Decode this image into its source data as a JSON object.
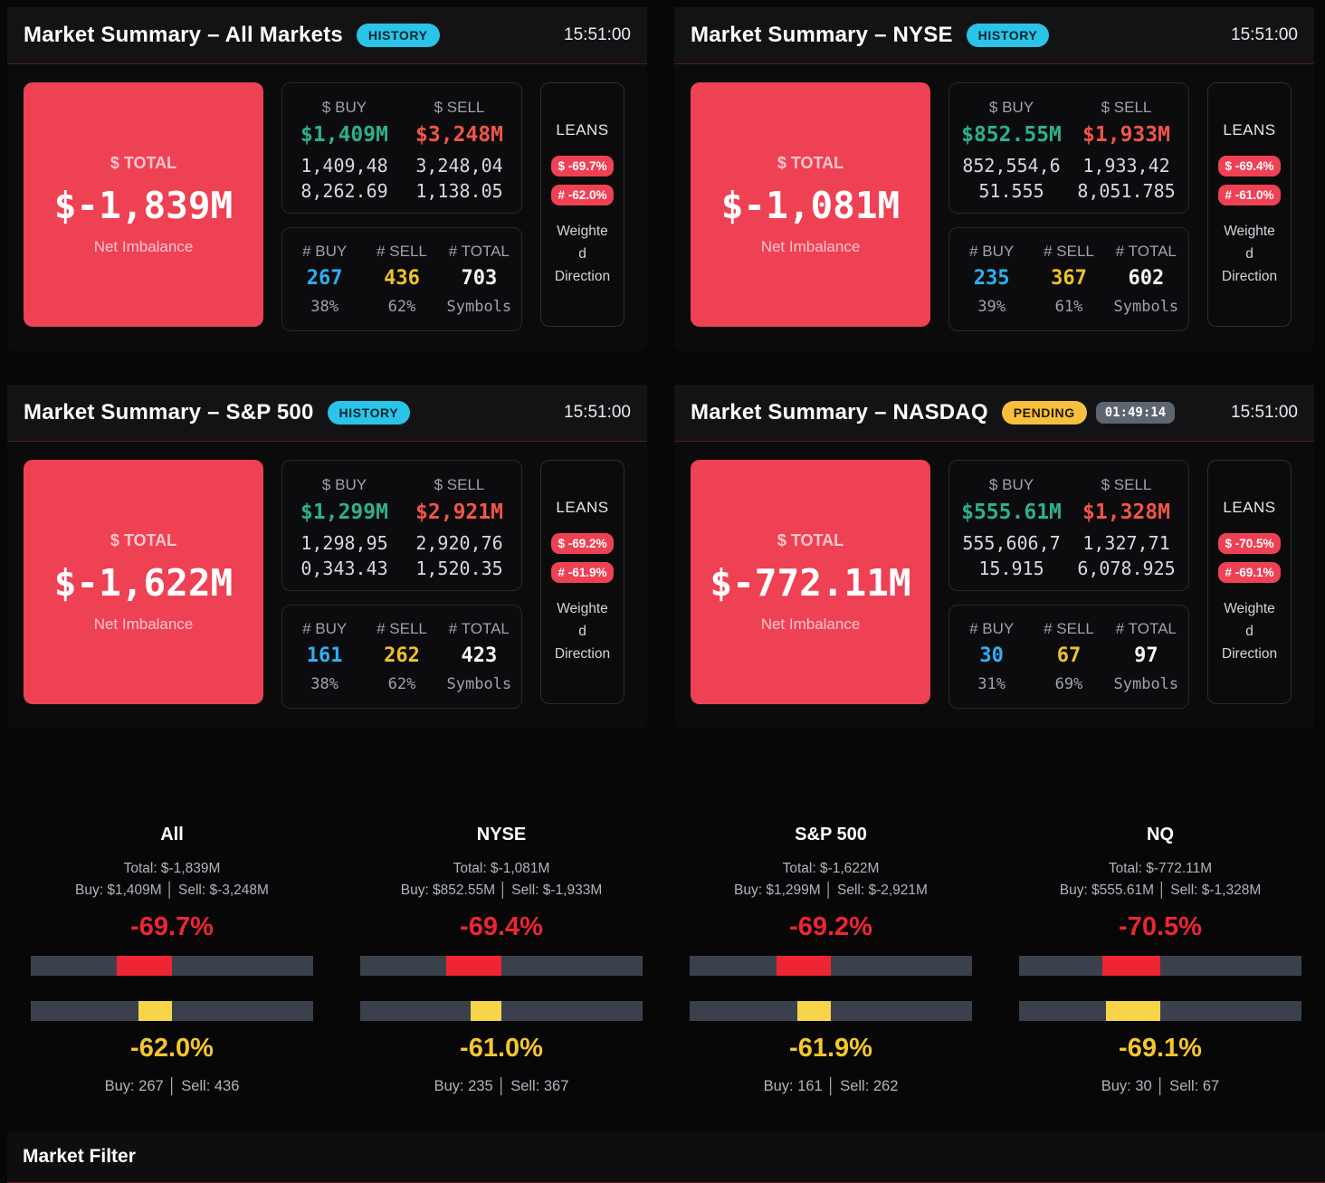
{
  "colors": {
    "imbalance_red": "#ee4154",
    "buy_green": "#2bb18d",
    "sell_red": "#f25449",
    "count_blue": "#2eb0f3",
    "count_yellow": "#eec22d",
    "history_badge_cyan": "#29c4e8",
    "pending_badge_yellow": "#f6bf3e",
    "gauge_red": "#ee2533",
    "gauge_yellow_text": "#f6c62d",
    "gauge_yellow_marker": "#f7d44a",
    "gauge_track": "#3a414c"
  },
  "panels": [
    {
      "title": "Market Summary – All Markets",
      "badge": "HISTORY",
      "badge_type": "history",
      "timer": "",
      "time": "15:51:00",
      "total": {
        "label": "$ TOTAL",
        "value": "$-1,839M",
        "sub": "Net Imbalance"
      },
      "dollar": {
        "buy_label": "$ BUY",
        "sell_label": "$ SELL",
        "buy": "$1,409M",
        "sell": "$3,248M",
        "buy_raw": "1,409,488,262.69",
        "sell_raw": "3,248,041,138.05"
      },
      "count": {
        "buy_label": "# BUY",
        "sell_label": "# SELL",
        "total_label": "# TOTAL",
        "buy": "267",
        "sell": "436",
        "total": "703",
        "buy_pct": "38%",
        "sell_pct": "62%",
        "total_sub": "Symbols"
      },
      "leans": {
        "label": "LEANS",
        "dollar": "$ -69.7%",
        "count": "# -62.0%",
        "caption": "Weighted Direction"
      }
    },
    {
      "title": "Market Summary – NYSE",
      "badge": "HISTORY",
      "badge_type": "history",
      "timer": "",
      "time": "15:51:00",
      "total": {
        "label": "$ TOTAL",
        "value": "$-1,081M",
        "sub": "Net Imbalance"
      },
      "dollar": {
        "buy_label": "$ BUY",
        "sell_label": "$ SELL",
        "buy": "$852.55M",
        "sell": "$1,933M",
        "buy_raw": "852,554,651.555",
        "sell_raw": "1,933,428,051.785"
      },
      "count": {
        "buy_label": "# BUY",
        "sell_label": "# SELL",
        "total_label": "# TOTAL",
        "buy": "235",
        "sell": "367",
        "total": "602",
        "buy_pct": "39%",
        "sell_pct": "61%",
        "total_sub": "Symbols"
      },
      "leans": {
        "label": "LEANS",
        "dollar": "$ -69.4%",
        "count": "# -61.0%",
        "caption": "Weighted Direction"
      }
    },
    {
      "title": "Market Summary – S&P 500",
      "badge": "HISTORY",
      "badge_type": "history",
      "timer": "",
      "time": "15:51:00",
      "total": {
        "label": "$ TOTAL",
        "value": "$-1,622M",
        "sub": "Net Imbalance"
      },
      "dollar": {
        "buy_label": "$ BUY",
        "sell_label": "$ SELL",
        "buy": "$1,299M",
        "sell": "$2,921M",
        "buy_raw": "1,298,950,343.43",
        "sell_raw": "2,920,761,520.35"
      },
      "count": {
        "buy_label": "# BUY",
        "sell_label": "# SELL",
        "total_label": "# TOTAL",
        "buy": "161",
        "sell": "262",
        "total": "423",
        "buy_pct": "38%",
        "sell_pct": "62%",
        "total_sub": "Symbols"
      },
      "leans": {
        "label": "LEANS",
        "dollar": "$ -69.2%",
        "count": "# -61.9%",
        "caption": "Weighted Direction"
      }
    },
    {
      "title": "Market Summary – NASDAQ",
      "badge": "PENDING",
      "badge_type": "pending",
      "timer": "01:49:14",
      "time": "15:51:00",
      "total": {
        "label": "$ TOTAL",
        "value": "$-772.11M",
        "sub": "Net Imbalance"
      },
      "dollar": {
        "buy_label": "$ BUY",
        "sell_label": "$ SELL",
        "buy": "$555.61M",
        "sell": "$1,328M",
        "buy_raw": "555,606,715.915",
        "sell_raw": "1,327,716,078.925"
      },
      "count": {
        "buy_label": "# BUY",
        "sell_label": "# SELL",
        "total_label": "# TOTAL",
        "buy": "30",
        "sell": "67",
        "total": "97",
        "buy_pct": "31%",
        "sell_pct": "69%",
        "total_sub": "Symbols"
      },
      "leans": {
        "label": "LEANS",
        "dollar": "$ -70.5%",
        "count": "# -69.1%",
        "caption": "Weighted Direction"
      }
    }
  ],
  "gauges": {
    "columns": [
      {
        "name": "All",
        "total_line": "Total: $-1,839M",
        "buysell_line": "Buy: $1,409M │ Sell: $-3,248M",
        "dollar_pct": "-69.7%",
        "dollar_value": -69.7,
        "count_pct": "-62.0%",
        "count_value": -62.0,
        "counts_line": "Buy: 267 │ Sell: 436"
      },
      {
        "name": "NYSE",
        "total_line": "Total: $-1,081M",
        "buysell_line": "Buy: $852.55M │ Sell: $-1,933M",
        "dollar_pct": "-69.4%",
        "dollar_value": -69.4,
        "count_pct": "-61.0%",
        "count_value": -61.0,
        "counts_line": "Buy: 235 │ Sell: 367"
      },
      {
        "name": "S&P 500",
        "total_line": "Total: $-1,622M",
        "buysell_line": "Buy: $1,299M │ Sell: $-2,921M",
        "dollar_pct": "-69.2%",
        "dollar_value": -69.2,
        "count_pct": "-61.9%",
        "count_value": -61.9,
        "counts_line": "Buy: 161 │ Sell: 262"
      },
      {
        "name": "NQ",
        "total_line": "Total: $-772.11M",
        "buysell_line": "Buy: $555.61M │ Sell: $-1,328M",
        "dollar_pct": "-70.5%",
        "dollar_value": -70.5,
        "count_pct": "-69.1%",
        "count_value": -69.1,
        "counts_line": "Buy: 30 │ Sell: 67"
      }
    ]
  },
  "footer": {
    "title": "Market Filter"
  }
}
